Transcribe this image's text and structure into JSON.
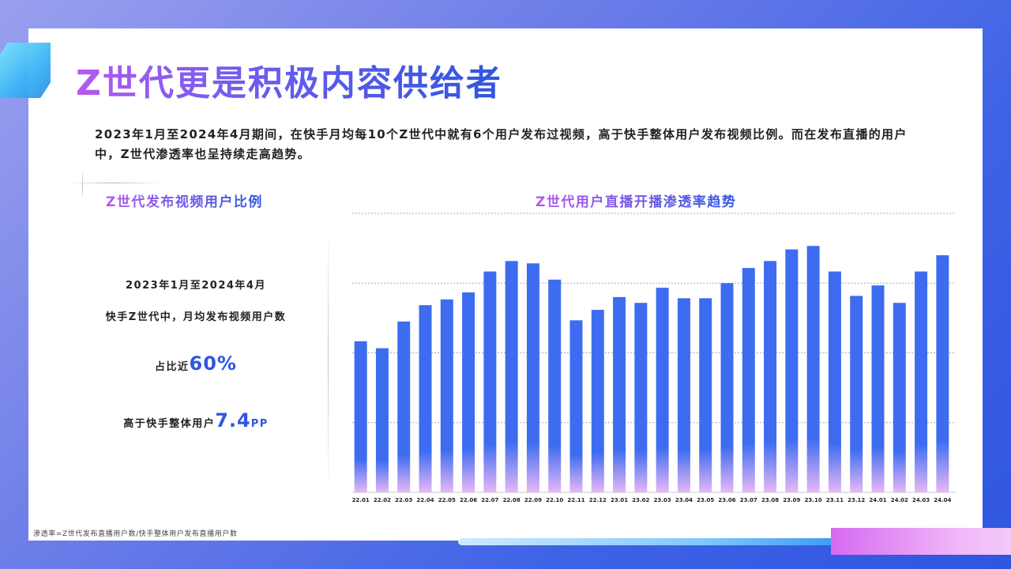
{
  "title": "Z世代更是积极内容供给者",
  "subtitle": "2023年1月至2024年4月期间，在快手月均每10个Z世代中就有6个用户发布过视频，高于快手整体用户发布视频比例。而在发布直播的用户中，Z世代渗透率也呈持续走高趋势。",
  "left_panel": {
    "title": "Z世代发布视频用户比例",
    "period": "2023年1月至2024年4月",
    "desc": "快手Z世代中，月均发布视频用户数",
    "ratio_label": "占比近",
    "ratio_value": "60%",
    "diff_label": "高于快手整体用户",
    "diff_value": "7.4",
    "diff_unit": "PP"
  },
  "footnote": "渗透率=Z世代发布直播用户数/快手整体用户发布直播用户数",
  "colors": {
    "accent": "#2f56e0",
    "bar": "#3d6cf0",
    "bar_fade": "#e6b8f6",
    "title_grad_start": "#b45af0"
  },
  "chart_data": {
    "type": "bar",
    "title": "Z世代用户直播开播渗透率趋势",
    "xlabel": "",
    "ylabel": "",
    "grid": true,
    "categories": [
      "22.01",
      "22.02",
      "22.03",
      "22.04",
      "22.05",
      "22.06",
      "22.07",
      "22.08",
      "22.09",
      "22.10",
      "22.11",
      "22.12",
      "23.01",
      "23.02",
      "23.03",
      "23.04",
      "23.05",
      "23.06",
      "23.07",
      "23.08",
      "23.09",
      "23.10",
      "23.11",
      "23.12",
      "24.01",
      "24.02",
      "24.03",
      "24.04"
    ],
    "values": [
      65,
      62,
      73.5,
      80.5,
      83,
      86,
      95,
      99.5,
      98.5,
      91.5,
      74,
      78.5,
      84,
      81.5,
      88,
      83.5,
      83.5,
      90,
      96.5,
      99.5,
      104.5,
      106,
      95,
      84.5,
      89,
      81.5,
      95,
      102
    ],
    "ylim": [
      0,
      120
    ]
  }
}
